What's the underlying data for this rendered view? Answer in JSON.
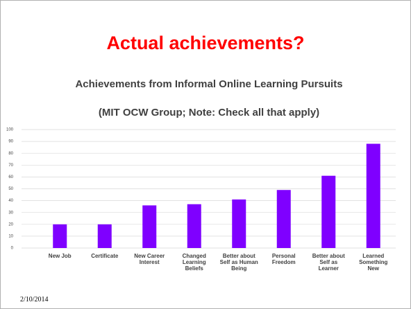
{
  "slide_title": "Actual achievements?",
  "date": "2/10/2014",
  "chart_data": {
    "type": "bar",
    "title": "Achievements from Informal Online Learning Pursuits",
    "subtitle": "(MIT OCW Group; Note: Check all that apply)",
    "categories": [
      "New Job",
      "Certificate",
      "New Career Interest",
      "Changed Learning Beliefs",
      "Better about Self as Human Being",
      "Personal Freedom",
      "Better about Self as Learner",
      "Learned Something New"
    ],
    "values": [
      20,
      20,
      36,
      37,
      41,
      49,
      61,
      88
    ],
    "color": "#7f00ff",
    "ylim": [
      0,
      100
    ],
    "yticks": [
      0,
      10,
      20,
      30,
      40,
      50,
      60,
      70,
      80,
      90,
      100
    ],
    "grid": true
  }
}
